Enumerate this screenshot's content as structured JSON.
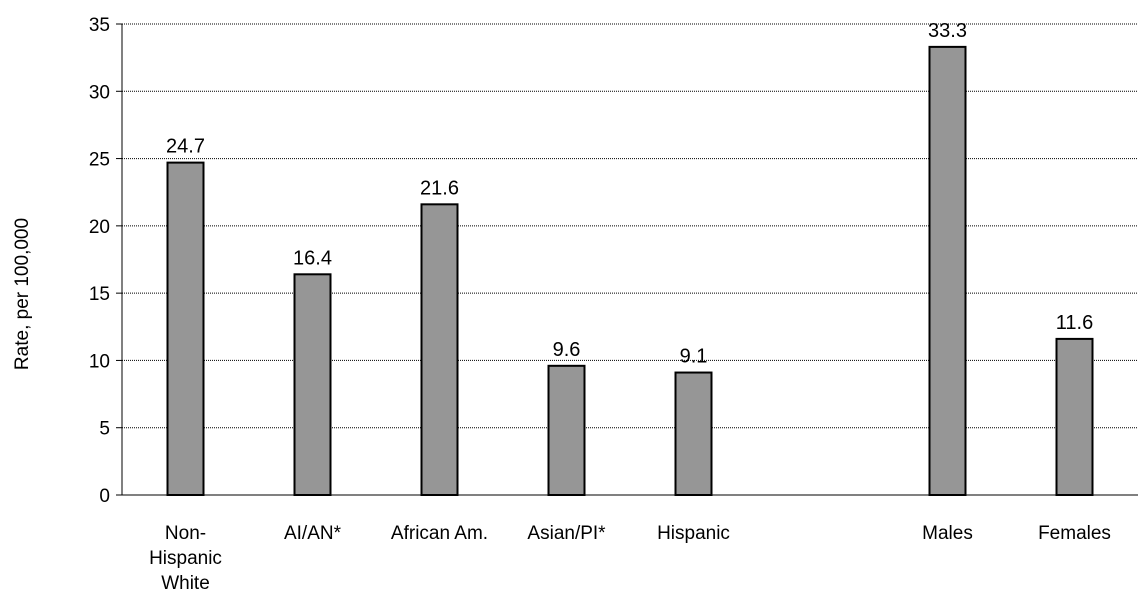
{
  "chart_data": {
    "type": "bar",
    "title": "",
    "xlabel": "",
    "ylabel": "Rate, per 100,000",
    "ylim": [
      0,
      35
    ],
    "yticks": [
      0,
      5,
      10,
      15,
      20,
      25,
      30,
      35
    ],
    "grid": true,
    "legend": "none",
    "bar_color": "#969696",
    "bar_edge_color": "#000000",
    "categories": [
      [
        "Non-",
        "Hispanic",
        "White"
      ],
      [
        "AI/AN*"
      ],
      [
        "African Am."
      ],
      [
        "Asian/PI*"
      ],
      [
        "Hispanic"
      ],
      [
        ""
      ],
      [
        "Males"
      ],
      [
        "Females"
      ]
    ],
    "values": [
      24.7,
      16.4,
      21.6,
      9.6,
      9.1,
      null,
      33.3,
      11.6
    ],
    "data_labels": [
      "24.7",
      "16.4",
      "21.6",
      "9.6",
      "9.1",
      "",
      "33.3",
      "11.6"
    ]
  }
}
